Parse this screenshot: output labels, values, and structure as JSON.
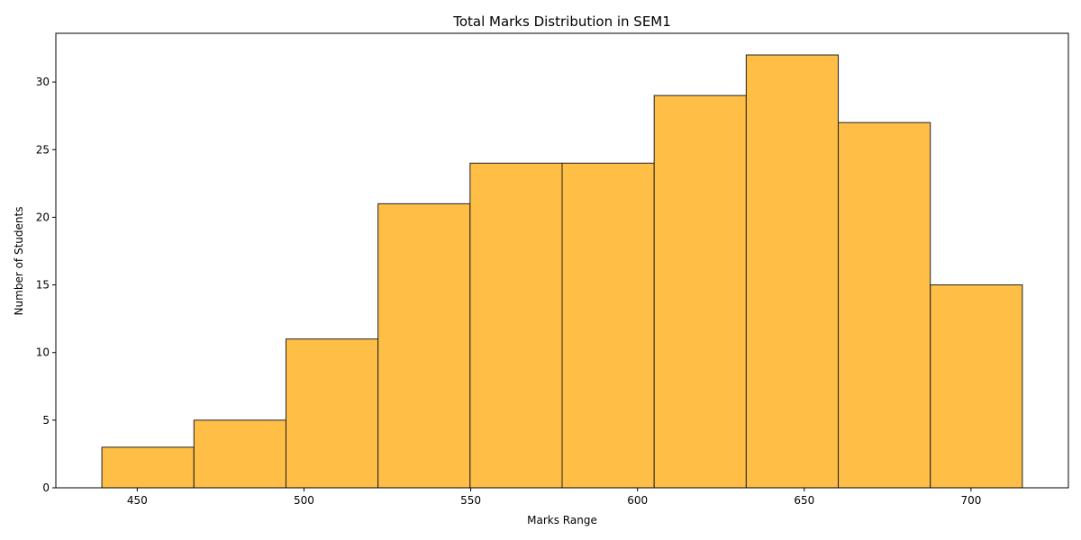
{
  "chart_data": {
    "type": "bar",
    "title": "Total Marks Distribution in SEM1",
    "xlabel": "Marks Range",
    "ylabel": "Number of Students",
    "bin_edges": [
      439.4,
      467.0,
      494.6,
      522.2,
      549.8,
      577.4,
      605.0,
      632.6,
      660.2,
      687.8,
      715.4
    ],
    "values": [
      3,
      5,
      11,
      21,
      24,
      24,
      29,
      32,
      27,
      15
    ],
    "xlim": [
      425.6,
      729.2
    ],
    "ylim": [
      0,
      33.6
    ],
    "xticks": [
      450,
      500,
      550,
      600,
      650,
      700
    ],
    "yticks": [
      0,
      5,
      10,
      15,
      20,
      25,
      30
    ],
    "bar_color": "#FFB833",
    "edge_color": "#222222",
    "grid": false
  }
}
